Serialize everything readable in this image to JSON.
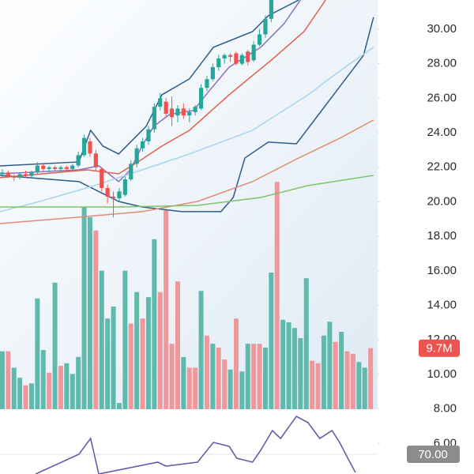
{
  "chart_data": [
    {
      "type": "candlestick",
      "xlim": [
        -0.4,
        64.2
      ],
      "ylim": [
        4.23,
        31.69
      ],
      "yticks": [
        {
          "value": 6,
          "label": "6.00"
        },
        {
          "value": 8,
          "label": "8.00"
        },
        {
          "value": 10,
          "label": "10.00"
        },
        {
          "value": 12,
          "label": "12.00"
        },
        {
          "value": 14,
          "label": "14.00"
        },
        {
          "value": 16,
          "label": "16.00"
        },
        {
          "value": 18,
          "label": "18.00"
        },
        {
          "value": 20,
          "label": "20.00"
        },
        {
          "value": 22,
          "label": "22.00"
        },
        {
          "value": 24,
          "label": "24.00"
        },
        {
          "value": 26,
          "label": "26.00"
        },
        {
          "value": 28,
          "label": "28.00"
        },
        {
          "value": 30,
          "label": "30.00"
        }
      ],
      "up_color": "#26a69a",
      "down_color": "#ef5350",
      "open": [
        21.6,
        21.7,
        21.5,
        21.4,
        21.6,
        21.5,
        21.7,
        22.1,
        21.9,
        22.0,
        21.9,
        22.0,
        21.9,
        22.1,
        22.7,
        23.5,
        22.8,
        21.9,
        20.8,
        20.3,
        20.2,
        20.4,
        21.3,
        22.2,
        23.1,
        23.5,
        24.2,
        25.5,
        25.8,
        25.4,
        25.0,
        25.4,
        25.0,
        25.2,
        25.4,
        26.6,
        27.1,
        27.8,
        28.3,
        28.5,
        28.6,
        28.0,
        28.7,
        28.2,
        29.1,
        29.7,
        30.6
      ],
      "high": [
        21.9,
        21.8,
        21.6,
        21.7,
        21.8,
        21.8,
        22.3,
        22.2,
        22.1,
        22.1,
        22.1,
        22.1,
        22.2,
        22.9,
        23.9,
        23.7,
        23.0,
        22.0,
        21.0,
        20.6,
        20.8,
        21.5,
        22.4,
        23.3,
        23.7,
        24.4,
        25.7,
        26.3,
        26.0,
        26.1,
        25.6,
        25.7,
        25.4,
        25.6,
        26.8,
        27.3,
        28.0,
        28.5,
        28.6,
        28.6,
        28.7,
        28.6,
        28.8,
        29.3,
        30.0,
        30.8,
        31.9
      ],
      "low": [
        21.4,
        21.4,
        21.2,
        21.3,
        21.4,
        21.4,
        21.6,
        21.8,
        21.7,
        21.8,
        21.7,
        21.8,
        21.8,
        22.0,
        22.6,
        22.6,
        21.8,
        20.6,
        19.9,
        19.1,
        20.0,
        20.3,
        21.2,
        22.0,
        22.9,
        23.3,
        24.0,
        25.3,
        24.9,
        24.4,
        24.6,
        24.8,
        24.6,
        25.0,
        25.3,
        26.4,
        27.0,
        27.6,
        28.0,
        28.1,
        27.9,
        27.9,
        27.9,
        28.1,
        29.0,
        29.5,
        30.4
      ],
      "close": [
        21.7,
        21.5,
        21.4,
        21.6,
        21.5,
        21.7,
        22.1,
        21.9,
        22.0,
        21.9,
        22.0,
        21.9,
        22.1,
        22.7,
        23.7,
        22.8,
        22.0,
        20.8,
        20.3,
        20.2,
        20.6,
        21.3,
        22.2,
        23.1,
        23.5,
        24.2,
        25.5,
        26.0,
        25.1,
        24.9,
        25.4,
        25.0,
        25.2,
        25.5,
        26.6,
        27.1,
        27.8,
        28.3,
        28.5,
        28.4,
        28.0,
        28.5,
        28.1,
        29.1,
        29.7,
        30.6,
        31.7
      ],
      "overlays": [
        {
          "color": "#2e5b8a",
          "x": [
            -0.4,
            13.1,
            19.9,
            23.9,
            30.7,
            37.4,
            39.5,
            41.5,
            45.5,
            50.3,
            53.6,
            57.7,
            61.8,
            63.5
          ],
          "values": [
            21.53,
            21.17,
            20.02,
            19.7,
            19.43,
            19.43,
            20.25,
            22.54,
            23.46,
            23.36,
            24.83,
            26.66,
            28.49,
            30.69
          ]
        },
        {
          "color": "#2e5b8a",
          "x": [
            -0.4,
            13.1,
            15.1,
            17.2,
            19.9,
            24.6,
            27.3,
            32,
            36.1,
            42.8,
            45.5,
            50.7
          ],
          "values": [
            22.08,
            22.31,
            24.14,
            23.23,
            22.77,
            24.37,
            26.2,
            27.12,
            28.95,
            29.86,
            30.78,
            31.69
          ]
        },
        {
          "color": "#8e6fbf",
          "x": [
            -0.4,
            13.1,
            16.5,
            19.9,
            21.9,
            23.9,
            25.9,
            28.6,
            32.7,
            35.4,
            38.8,
            44.2,
            48.2,
            51
          ],
          "values": [
            21.62,
            21.85,
            22.08,
            21.17,
            21.85,
            23.23,
            24.37,
            25.06,
            25.29,
            26.43,
            27.8,
            28.95,
            30.32,
            31.69
          ]
        },
        {
          "color": "#e0604a",
          "x": [
            -0.4,
            14.5,
            19.9,
            23.2,
            27.3,
            32,
            38.8,
            46.2,
            51.6,
            55.3
          ],
          "values": [
            21.4,
            21.85,
            21.62,
            22.31,
            23.23,
            24.14,
            26.2,
            28.26,
            29.86,
            31.69
          ]
        },
        {
          "color": "#a9d4ee",
          "x": [
            -0.4,
            6.4,
            15.8,
            23.9,
            32,
            42.8,
            52.3,
            57.7,
            63.5
          ],
          "values": [
            19.43,
            20.02,
            20.94,
            21.85,
            22.77,
            24.14,
            26.2,
            27.57,
            28.95
          ]
        },
        {
          "color": "#e28a7a",
          "x": [
            -0.4,
            13.1,
            23.9,
            33.4,
            42.8,
            50.7,
            57.7,
            63.5
          ],
          "values": [
            18.74,
            19.11,
            19.43,
            20.02,
            21.17,
            22.54,
            23.68,
            24.74
          ]
        },
        {
          "color": "#7cc46a",
          "x": [
            -0.4,
            19.9,
            33.4,
            44.2,
            52.3,
            63.5
          ],
          "values": [
            19.7,
            19.7,
            19.79,
            20.25,
            20.94,
            21.53
          ]
        }
      ]
    },
    {
      "type": "bar",
      "xlim": [
        -0.4,
        64.2
      ],
      "ylim": [
        0,
        65
      ],
      "palette": {
        "up": "#5fb9ad",
        "down": "#f0979b"
      },
      "badge_color": "#ef5350",
      "direction": [
        "up",
        "down",
        "up",
        "up",
        "down",
        "up",
        "up",
        "up",
        "down",
        "up",
        "down",
        "up",
        "up",
        "up",
        "up",
        "up",
        "down",
        "up",
        "up",
        "up",
        "up",
        "up",
        "down",
        "up",
        "down",
        "up",
        "up",
        "down",
        "down",
        "down",
        "down",
        "up",
        "down",
        "down",
        "up",
        "down",
        "up",
        "down",
        "down",
        "up",
        "down",
        "up",
        "up",
        "down",
        "down",
        "up",
        "up",
        "down",
        "up",
        "up",
        "up",
        "up",
        "up",
        "down",
        "down",
        "up",
        "up",
        "down",
        "up",
        "down",
        "down",
        "up",
        "up",
        "down"
      ],
      "values": [
        9.2,
        9.2,
        6.6,
        5.0,
        3.8,
        4.1,
        17.6,
        9.4,
        5.8,
        20.1,
        6.9,
        7.3,
        5.6,
        8.3,
        32.1,
        30.5,
        28.4,
        22.0,
        14.4,
        16.3,
        1.0,
        22.0,
        13.6,
        18.6,
        14.4,
        17.8,
        27.0,
        18.6,
        31.7,
        10.4,
        20.3,
        8.3,
        6.6,
        6.6,
        18.8,
        11.7,
        10.4,
        9.8,
        7.9,
        6.3,
        14.4,
        6.0,
        10.4,
        10.4,
        10.4,
        9.8,
        21.7,
        36.1,
        14.2,
        13.8,
        12.9,
        11.3,
        20.8,
        7.7,
        7.3,
        11.7,
        13.9,
        10.7,
        12.3,
        9.2,
        8.8,
        7.5,
        6.6,
        9.7
      ],
      "value_labels": [
        null,
        null,
        null,
        null,
        null,
        null,
        null,
        null,
        null,
        null,
        null,
        null,
        null,
        null,
        null,
        null,
        null,
        null,
        null,
        null,
        null,
        null,
        null,
        null,
        null,
        null,
        null,
        null,
        null,
        null,
        null,
        null,
        null,
        null,
        null,
        null,
        null,
        null,
        null,
        null,
        null,
        null,
        null,
        null,
        null,
        null,
        null,
        null,
        null,
        null,
        null,
        null,
        null,
        null,
        null,
        null,
        null,
        null,
        null,
        null,
        null,
        null,
        null,
        "9.7M"
      ]
    },
    {
      "type": "line",
      "xlim": [
        -0.4,
        64.2
      ],
      "ylim": [
        60,
        92.8
      ],
      "color": "#6a5aa8",
      "badge_color": "#8c8c8c",
      "yticks": [
        {
          "value": 70,
          "label": "70.00"
        }
      ],
      "x": [
        5.7,
        13.1,
        15.1,
        16.5,
        26.6,
        28,
        33.4,
        36.1,
        38.8,
        40.1,
        42.8,
        44.2,
        46.2,
        47.6,
        50.3,
        52.3,
        54.3,
        56.4,
        57.7,
        59.1,
        60.4
      ],
      "values": [
        60,
        70,
        78,
        60,
        66,
        64,
        66,
        76,
        74,
        68,
        66,
        72,
        82,
        78,
        89.2,
        86,
        78,
        82,
        76,
        68,
        60.8
      ]
    }
  ]
}
